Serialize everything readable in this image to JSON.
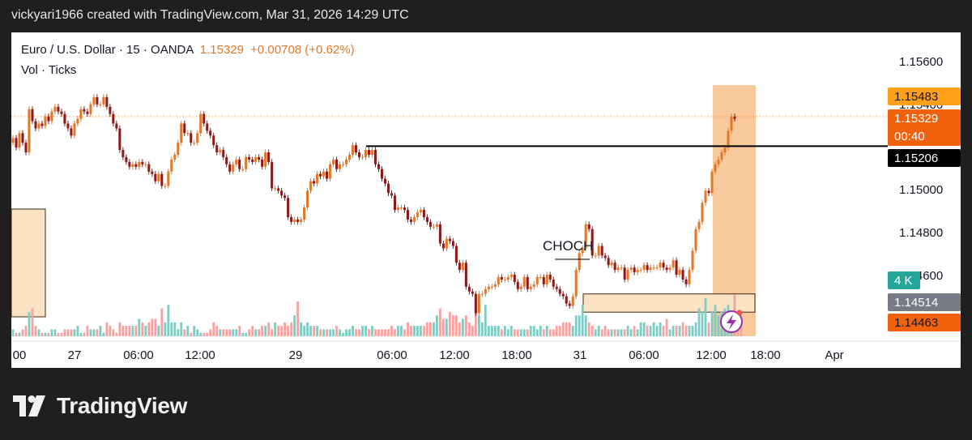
{
  "header": {
    "text": "vickyari1966 created with TradingView.com, Mar 31, 2026 14:29 UTC"
  },
  "legend": {
    "symbol": "Euro / U.S. Dollar · 15 · OANDA",
    "price": "1.15329",
    "change": "+0.00708 (+0.62%)",
    "volume_label": "Vol · Ticks"
  },
  "brand": {
    "name": "TradingView"
  },
  "colors": {
    "up": "#26a69a",
    "down": "#ef5350",
    "candle_up": "#e0782a",
    "candle_down": "#8b1a1a",
    "box_fill": "#fbe3c4",
    "highlight": "#f7c08a"
  },
  "chart_data": {
    "type": "candlestick",
    "symbol": "EURUSD",
    "interval": "15",
    "x_tick_labels": [
      "00",
      "27",
      "06:00",
      "12:00",
      "29",
      "06:00",
      "12:00",
      "18:00",
      "31",
      "06:00",
      "12:00",
      "18:00",
      "Apr"
    ],
    "y_tick_labels": [
      "1.15600",
      "1.15400",
      "1.15000",
      "1.14800",
      "1.14600"
    ],
    "ylim": [
      1.1441,
      1.1568
    ],
    "price_tags": [
      {
        "label": "1.15483",
        "value": 1.15483,
        "style": "orange"
      },
      {
        "label": "1.15329",
        "value": 1.15329,
        "style": "last",
        "sub": "00:40"
      },
      {
        "label": "1.15206",
        "value": 1.15206,
        "style": "black"
      },
      {
        "label": "4 K",
        "value": 1.14583,
        "style": "volume"
      },
      {
        "label": "1.14514",
        "value": 1.14514,
        "style": "gray"
      },
      {
        "label": "1.14463",
        "value": 1.14463,
        "style": "orange-red"
      }
    ],
    "annotations": [
      {
        "type": "text",
        "text": "CHOCH"
      },
      {
        "type": "hline",
        "value": 1.15206
      }
    ],
    "series": [
      {
        "name": "EURUSD",
        "values": [
          1.1524,
          1.152,
          1.1526,
          1.1522,
          1.1518,
          1.1536,
          1.1531,
          1.1528,
          1.153,
          1.1529,
          1.1533,
          1.1531,
          1.1535,
          1.1537,
          1.1535,
          1.1534,
          1.153,
          1.1528,
          1.1525,
          1.153,
          1.1532,
          1.1536,
          1.1535,
          1.1534,
          1.1538,
          1.1541,
          1.1538,
          1.1538,
          1.1541,
          1.1537,
          1.1534,
          1.153,
          1.1528,
          1.1519,
          1.1516,
          1.1514,
          1.1512,
          1.1513,
          1.1512,
          1.1514,
          1.1513,
          1.1513,
          1.151,
          1.1509,
          1.1506,
          1.1509,
          1.1504,
          1.1504,
          1.151,
          1.1515,
          1.1517,
          1.1522,
          1.153,
          1.1526,
          1.1526,
          1.1522,
          1.1522,
          1.1526,
          1.1534,
          1.153,
          1.1527,
          1.1525,
          1.1521,
          1.1518,
          1.1519,
          1.1516,
          1.1513,
          1.151,
          1.1513,
          1.1515,
          1.1511,
          1.1511,
          1.1516,
          1.1515,
          1.1514,
          1.1516,
          1.1515,
          1.1512,
          1.1518,
          1.1514,
          1.1503,
          1.1503,
          1.1502,
          1.15,
          1.1499,
          1.1491,
          1.1489,
          1.149,
          1.1489,
          1.149,
          1.1495,
          1.1502,
          1.1506,
          1.1505,
          1.1509,
          1.1508,
          1.151,
          1.1507,
          1.1513,
          1.1515,
          1.1511,
          1.1513,
          1.1513,
          1.1515,
          1.1517,
          1.1521,
          1.1518,
          1.1516,
          1.1516,
          1.1519,
          1.1517,
          1.1519,
          1.1513,
          1.1511,
          1.1507,
          1.1505,
          1.1501,
          1.15,
          1.1494,
          1.1495,
          1.1495,
          1.1494,
          1.149,
          1.1489,
          1.1491,
          1.1493,
          1.1494,
          1.1491,
          1.1489,
          1.1487,
          1.1487,
          1.1488,
          1.148,
          1.1478,
          1.1482,
          1.1481,
          1.1479,
          1.1472,
          1.1469,
          1.1472,
          1.1462,
          1.146,
          1.1459,
          1.1451,
          1.1459,
          1.1459,
          1.1461,
          1.1462,
          1.1462,
          1.1463,
          1.1466,
          1.1465,
          1.1465,
          1.1466,
          1.1467,
          1.1464,
          1.1461,
          1.1462,
          1.1466,
          1.1461,
          1.1462,
          1.1463,
          1.1466,
          1.1466,
          1.1463,
          1.1467,
          1.1465,
          1.1462,
          1.1461,
          1.1459,
          1.1458,
          1.1455,
          1.1454,
          1.1458,
          1.1469,
          1.1476,
          1.1478,
          1.1488,
          1.1486,
          1.1475,
          1.1475,
          1.1479,
          1.1475,
          1.1474,
          1.1471,
          1.1472,
          1.1469,
          1.147,
          1.147,
          1.1465,
          1.1469,
          1.147,
          1.1468,
          1.1469,
          1.1469,
          1.1471,
          1.1469,
          1.147,
          1.147,
          1.147,
          1.1472,
          1.147,
          1.1469,
          1.147,
          1.1473,
          1.1467,
          1.1469,
          1.1465,
          1.1463,
          1.1469,
          1.1477,
          1.1486,
          1.1489,
          1.1497,
          1.1502,
          1.1501,
          1.151,
          1.1513,
          1.1515,
          1.1518,
          1.152,
          1.1527,
          1.1533,
          1.1532
        ]
      },
      {
        "name": "Volume",
        "values": [
          2,
          1,
          1,
          2,
          3,
          7,
          8,
          3,
          2,
          1,
          1,
          1,
          2,
          2,
          1,
          1,
          2,
          2,
          2,
          2,
          3,
          1,
          1,
          3,
          2,
          2,
          2,
          3,
          1,
          4,
          3,
          2,
          1,
          4,
          3,
          3,
          3,
          3,
          3,
          5,
          4,
          3,
          4,
          5,
          5,
          3,
          8,
          4,
          9,
          4,
          4,
          2,
          4,
          2,
          3,
          1,
          3,
          2,
          1,
          1,
          1,
          2,
          4,
          3,
          2,
          2,
          2,
          2,
          2,
          2,
          3,
          1,
          1,
          2,
          3,
          2,
          2,
          3,
          3,
          4,
          2,
          4,
          3,
          3,
          4,
          3,
          4,
          6,
          10,
          4,
          3,
          4,
          3,
          3,
          3,
          2,
          2,
          2,
          2,
          2,
          3,
          2,
          1,
          2,
          2,
          3,
          2,
          2,
          3,
          3,
          2,
          3,
          2,
          2,
          2,
          2,
          2,
          3,
          2,
          3,
          3,
          2,
          4,
          3,
          3,
          3,
          3,
          3,
          4,
          4,
          4,
          6,
          8,
          5,
          5,
          7,
          6,
          6,
          4,
          5,
          6,
          4,
          3,
          7,
          6,
          4,
          9,
          3,
          3,
          3,
          3,
          2,
          3,
          2,
          3,
          2,
          2,
          2,
          2,
          2,
          3,
          3,
          2,
          3,
          2,
          3,
          2,
          2,
          3,
          3,
          4,
          4,
          4,
          3,
          6,
          6,
          9,
          6,
          4,
          3,
          2,
          3,
          2,
          3,
          2,
          2,
          2,
          2,
          2,
          2,
          3,
          2,
          3,
          2,
          4,
          4,
          3,
          3,
          4,
          3,
          4,
          3,
          5,
          2,
          3,
          3,
          3,
          4,
          3,
          3,
          3,
          4,
          8,
          7,
          11,
          4,
          7,
          9,
          6,
          7,
          8,
          9,
          6,
          12,
          7,
          4
        ]
      }
    ]
  }
}
